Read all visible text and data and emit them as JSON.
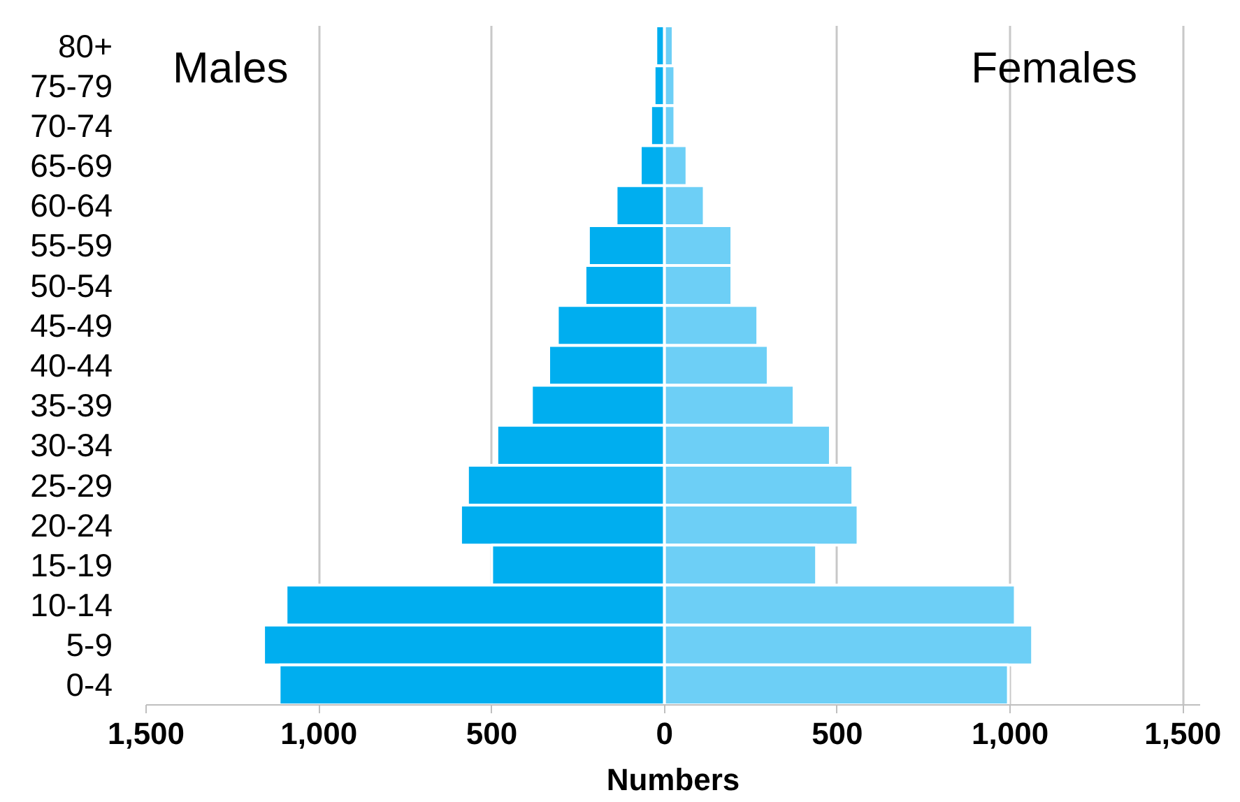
{
  "chart_data": {
    "type": "bar",
    "orientation": "horizontal",
    "stacked": true,
    "categories": [
      "80+",
      "75-79",
      "70-74",
      "65-69",
      "60-64",
      "55-59",
      "50-54",
      "45-49",
      "40-44",
      "35-39",
      "30-34",
      "25-29",
      "20-24",
      "15-19",
      "10-14",
      "5-9",
      "0-4"
    ],
    "series": [
      {
        "color": "#00aeef",
        "values": [
          -25,
          -30,
          -40,
          -70,
          -140,
          -220,
          -230,
          -310,
          -335,
          -385,
          -485,
          -570,
          -590,
          -500,
          -1095,
          -1160,
          -1115
        ]
      },
      {
        "color": "#6dcff6",
        "values": [
          25,
          30,
          30,
          65,
          115,
          195,
          195,
          270,
          300,
          375,
          480,
          545,
          560,
          440,
          1015,
          1065,
          995
        ]
      }
    ],
    "xlim": [
      -1500,
      1550
    ],
    "xticks": [
      {
        "value": -1500,
        "label": "1,500"
      },
      {
        "value": -1000,
        "label": "1,000"
      },
      {
        "value": -500,
        "label": "500"
      },
      0,
      500,
      {
        "value": 1000,
        "label": "1,000"
      },
      {
        "value": 1500,
        "label": "1,500"
      }
    ],
    "xlabel": "Numbers",
    "grid": "x",
    "annotations": [
      "Males",
      "Females"
    ]
  }
}
